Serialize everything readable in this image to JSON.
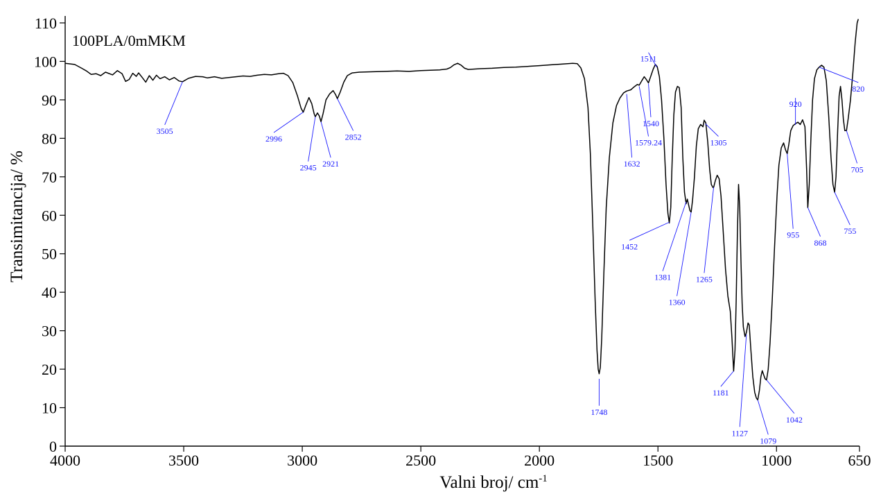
{
  "chart_data": {
    "type": "line",
    "title": "",
    "xlabel": "Valni broj/ cm",
    "xlabel_superscript": "-1",
    "ylabel": "Transimitancija/ %",
    "xlim": [
      4000,
      650
    ],
    "ylim": [
      0,
      110
    ],
    "x_reversed": true,
    "grid": false,
    "x_ticks": [
      4000,
      3500,
      3000,
      2500,
      2000,
      1500,
      1000,
      650
    ],
    "y_ticks": [
      0,
      10,
      20,
      30,
      40,
      50,
      60,
      70,
      80,
      90,
      100,
      110
    ],
    "series": [
      {
        "name": "100PLA/0mMKM",
        "color": "#000000",
        "points": [
          [
            4000,
            99.5
          ],
          [
            3960,
            99.2
          ],
          [
            3930,
            98.2
          ],
          [
            3910,
            97.5
          ],
          [
            3890,
            96.6
          ],
          [
            3870,
            96.8
          ],
          [
            3850,
            96.3
          ],
          [
            3830,
            97.2
          ],
          [
            3800,
            96.5
          ],
          [
            3780,
            97.6
          ],
          [
            3760,
            96.8
          ],
          [
            3745,
            94.8
          ],
          [
            3730,
            95.3
          ],
          [
            3715,
            96.9
          ],
          [
            3700,
            96.1
          ],
          [
            3690,
            97.0
          ],
          [
            3675,
            95.8
          ],
          [
            3660,
            94.6
          ],
          [
            3645,
            96.3
          ],
          [
            3630,
            95.1
          ],
          [
            3615,
            96.4
          ],
          [
            3600,
            95.5
          ],
          [
            3580,
            96.0
          ],
          [
            3560,
            95.2
          ],
          [
            3540,
            95.8
          ],
          [
            3520,
            94.9
          ],
          [
            3505,
            94.7
          ],
          [
            3480,
            95.6
          ],
          [
            3450,
            96.1
          ],
          [
            3420,
            96.0
          ],
          [
            3400,
            95.7
          ],
          [
            3370,
            96.0
          ],
          [
            3340,
            95.6
          ],
          [
            3310,
            95.8
          ],
          [
            3280,
            96.0
          ],
          [
            3250,
            96.2
          ],
          [
            3220,
            96.1
          ],
          [
            3190,
            96.4
          ],
          [
            3160,
            96.6
          ],
          [
            3130,
            96.5
          ],
          [
            3100,
            96.8
          ],
          [
            3080,
            96.9
          ],
          [
            3060,
            96.3
          ],
          [
            3040,
            94.5
          ],
          [
            3020,
            91.0
          ],
          [
            3005,
            87.8
          ],
          [
            2996,
            86.8
          ],
          [
            2985,
            88.6
          ],
          [
            2972,
            90.6
          ],
          [
            2960,
            89.0
          ],
          [
            2950,
            86.4
          ],
          [
            2945,
            85.6
          ],
          [
            2936,
            86.6
          ],
          [
            2928,
            85.8
          ],
          [
            2921,
            84.3
          ],
          [
            2912,
            86.5
          ],
          [
            2900,
            90.0
          ],
          [
            2885,
            91.5
          ],
          [
            2870,
            92.4
          ],
          [
            2860,
            91.4
          ],
          [
            2852,
            90.3
          ],
          [
            2840,
            92.0
          ],
          [
            2825,
            94.6
          ],
          [
            2810,
            96.3
          ],
          [
            2790,
            97.0
          ],
          [
            2760,
            97.2
          ],
          [
            2700,
            97.3
          ],
          [
            2650,
            97.4
          ],
          [
            2600,
            97.5
          ],
          [
            2550,
            97.4
          ],
          [
            2500,
            97.6
          ],
          [
            2460,
            97.7
          ],
          [
            2420,
            97.8
          ],
          [
            2390,
            98.0
          ],
          [
            2375,
            98.4
          ],
          [
            2360,
            99.1
          ],
          [
            2345,
            99.5
          ],
          [
            2330,
            99.0
          ],
          [
            2315,
            98.2
          ],
          [
            2300,
            97.9
          ],
          [
            2250,
            98.1
          ],
          [
            2200,
            98.2
          ],
          [
            2150,
            98.4
          ],
          [
            2100,
            98.5
          ],
          [
            2050,
            98.7
          ],
          [
            2000,
            98.9
          ],
          [
            1950,
            99.1
          ],
          [
            1900,
            99.3
          ],
          [
            1860,
            99.5
          ],
          [
            1840,
            99.4
          ],
          [
            1825,
            98.3
          ],
          [
            1810,
            95.5
          ],
          [
            1795,
            88.0
          ],
          [
            1785,
            76.0
          ],
          [
            1775,
            58.0
          ],
          [
            1765,
            38.0
          ],
          [
            1757,
            25.0
          ],
          [
            1752,
            20.0
          ],
          [
            1748,
            18.8
          ],
          [
            1743,
            20.5
          ],
          [
            1737,
            28.0
          ],
          [
            1728,
            45.0
          ],
          [
            1718,
            62.0
          ],
          [
            1705,
            75.0
          ],
          [
            1690,
            84.0
          ],
          [
            1675,
            88.5
          ],
          [
            1660,
            90.5
          ],
          [
            1645,
            91.8
          ],
          [
            1632,
            92.3
          ],
          [
            1615,
            92.6
          ],
          [
            1600,
            93.4
          ],
          [
            1587,
            94.0
          ],
          [
            1579,
            93.8
          ],
          [
            1568,
            95.0
          ],
          [
            1558,
            96.0
          ],
          [
            1548,
            95.2
          ],
          [
            1540,
            94.4
          ],
          [
            1530,
            96.2
          ],
          [
            1520,
            98.0
          ],
          [
            1511,
            99.2
          ],
          [
            1503,
            98.6
          ],
          [
            1494,
            96.0
          ],
          [
            1485,
            90.0
          ],
          [
            1475,
            80.0
          ],
          [
            1466,
            68.0
          ],
          [
            1458,
            60.5
          ],
          [
            1452,
            58.0
          ],
          [
            1446,
            62.0
          ],
          [
            1440,
            74.0
          ],
          [
            1433,
            86.0
          ],
          [
            1426,
            92.0
          ],
          [
            1418,
            93.5
          ],
          [
            1410,
            93.2
          ],
          [
            1402,
            88.0
          ],
          [
            1395,
            75.0
          ],
          [
            1388,
            66.0
          ],
          [
            1381,
            63.0
          ],
          [
            1376,
            64.2
          ],
          [
            1370,
            62.5
          ],
          [
            1365,
            61.2
          ],
          [
            1360,
            60.8
          ],
          [
            1354,
            64.0
          ],
          [
            1346,
            70.0
          ],
          [
            1338,
            78.0
          ],
          [
            1330,
            82.5
          ],
          [
            1320,
            83.6
          ],
          [
            1310,
            83.0
          ],
          [
            1305,
            84.7
          ],
          [
            1298,
            84.0
          ],
          [
            1290,
            79.0
          ],
          [
            1282,
            72.0
          ],
          [
            1275,
            68.0
          ],
          [
            1268,
            67.2
          ],
          [
            1265,
            67.3
          ],
          [
            1258,
            69.0
          ],
          [
            1250,
            70.4
          ],
          [
            1242,
            69.5
          ],
          [
            1234,
            65.0
          ],
          [
            1225,
            56.0
          ],
          [
            1215,
            46.0
          ],
          [
            1205,
            39.0
          ],
          [
            1195,
            35.0
          ],
          [
            1188,
            28.0
          ],
          [
            1181,
            19.5
          ],
          [
            1175,
            25.0
          ],
          [
            1170,
            38.0
          ],
          [
            1165,
            55.0
          ],
          [
            1160,
            68.0
          ],
          [
            1155,
            62.0
          ],
          [
            1150,
            48.0
          ],
          [
            1145,
            37.0
          ],
          [
            1140,
            31.0
          ],
          [
            1133,
            28.5
          ],
          [
            1127,
            29.5
          ],
          [
            1120,
            32.0
          ],
          [
            1115,
            31.5
          ],
          [
            1108,
            25.0
          ],
          [
            1100,
            18.0
          ],
          [
            1092,
            14.0
          ],
          [
            1085,
            12.5
          ],
          [
            1079,
            12.0
          ],
          [
            1072,
            14.5
          ],
          [
            1066,
            18.0
          ],
          [
            1060,
            19.6
          ],
          [
            1054,
            18.5
          ],
          [
            1048,
            17.5
          ],
          [
            1042,
            17.2
          ],
          [
            1035,
            20.0
          ],
          [
            1027,
            27.0
          ],
          [
            1018,
            38.0
          ],
          [
            1008,
            52.0
          ],
          [
            998,
            65.0
          ],
          [
            990,
            73.0
          ],
          [
            980,
            77.5
          ],
          [
            970,
            78.8
          ],
          [
            962,
            77.0
          ],
          [
            955,
            76.0
          ],
          [
            948,
            78.5
          ],
          [
            940,
            82.0
          ],
          [
            930,
            83.3
          ],
          [
            920,
            83.8
          ],
          [
            910,
            84.2
          ],
          [
            900,
            83.6
          ],
          [
            890,
            84.8
          ],
          [
            880,
            83.0
          ],
          [
            873,
            72.0
          ],
          [
            868,
            62.0
          ],
          [
            862,
            68.0
          ],
          [
            855,
            80.0
          ],
          [
            848,
            90.0
          ],
          [
            840,
            95.5
          ],
          [
            830,
            97.8
          ],
          [
            820,
            98.5
          ],
          [
            810,
            99.0
          ],
          [
            800,
            98.5
          ],
          [
            790,
            95.0
          ],
          [
            780,
            86.0
          ],
          [
            770,
            75.0
          ],
          [
            762,
            68.0
          ],
          [
            755,
            66.0
          ],
          [
            749,
            70.0
          ],
          [
            742,
            82.0
          ],
          [
            736,
            91.0
          ],
          [
            730,
            93.5
          ],
          [
            724,
            90.0
          ],
          [
            718,
            85.0
          ],
          [
            712,
            82.0
          ],
          [
            705,
            82.0
          ],
          [
            698,
            85.0
          ],
          [
            688,
            90.0
          ],
          [
            678,
            97.0
          ],
          [
            668,
            105.0
          ],
          [
            660,
            110.0
          ],
          [
            655,
            111.0
          ]
        ]
      }
    ],
    "annotations": [
      {
        "text": "3505",
        "point": [
          3505,
          94.7
        ],
        "label": [
          3580,
          83.5
        ]
      },
      {
        "text": "2996",
        "point": [
          2996,
          86.8
        ],
        "label": [
          3120,
          81.5
        ]
      },
      {
        "text": "2945",
        "point": [
          2945,
          85.6
        ],
        "label": [
          2975,
          74.0
        ]
      },
      {
        "text": "2921",
        "point": [
          2921,
          84.3
        ],
        "label": [
          2880,
          75.0
        ]
      },
      {
        "text": "2852",
        "point": [
          2852,
          90.3
        ],
        "label": [
          2785,
          82.0
        ]
      },
      {
        "text": "1748",
        "point": [
          1748,
          17.5
        ],
        "label": [
          1748,
          10.5
        ]
      },
      {
        "text": "1632",
        "point": [
          1632,
          91.5
        ],
        "label": [
          1610,
          75.0
        ]
      },
      {
        "text": "1579.24",
        "point": [
          1579,
          93.5
        ],
        "label": [
          1540,
          80.5
        ]
      },
      {
        "text": "1540",
        "point": [
          1540,
          94.2
        ],
        "label": [
          1530,
          85.5
        ]
      },
      {
        "text": "1511",
        "point": [
          1505,
          98.5
        ],
        "label": [
          1540,
          102.3
        ]
      },
      {
        "text": "1305",
        "point": [
          1300,
          83.8
        ],
        "label": [
          1245,
          80.5
        ]
      },
      {
        "text": "1452",
        "point": [
          1452,
          58.2
        ],
        "label": [
          1620,
          53.5
        ]
      },
      {
        "text": "1381",
        "point": [
          1381,
          63.5
        ],
        "label": [
          1480,
          45.5
        ]
      },
      {
        "text": "1360",
        "point": [
          1360,
          60.8
        ],
        "label": [
          1420,
          39.0
        ]
      },
      {
        "text": "1265",
        "point": [
          1265,
          67.3
        ],
        "label": [
          1305,
          45.0
        ]
      },
      {
        "text": "1181",
        "point": [
          1181,
          19.5
        ],
        "label": [
          1235,
          15.5
        ]
      },
      {
        "text": "1127",
        "point": [
          1127,
          29.0
        ],
        "label": [
          1155,
          5.0
        ]
      },
      {
        "text": "1079",
        "point": [
          1079,
          12.0
        ],
        "label": [
          1035,
          3.0
        ]
      },
      {
        "text": "1042",
        "point": [
          1042,
          17.2
        ],
        "label": [
          925,
          8.5
        ]
      },
      {
        "text": "920",
        "point": [
          920,
          83.5
        ],
        "label": [
          920,
          90.5
        ]
      },
      {
        "text": "955",
        "point": [
          955,
          76.0
        ],
        "label": [
          930,
          56.5
        ]
      },
      {
        "text": "868",
        "point": [
          868,
          62.0
        ],
        "label": [
          815,
          54.5
        ]
      },
      {
        "text": "820",
        "point": [
          820,
          98.5
        ],
        "label": [
          655,
          94.5
        ]
      },
      {
        "text": "705",
        "point": [
          705,
          82.0
        ],
        "label": [
          660,
          73.5
        ]
      },
      {
        "text": "755",
        "point": [
          755,
          66.0
        ],
        "label": [
          690,
          57.5
        ]
      }
    ]
  }
}
